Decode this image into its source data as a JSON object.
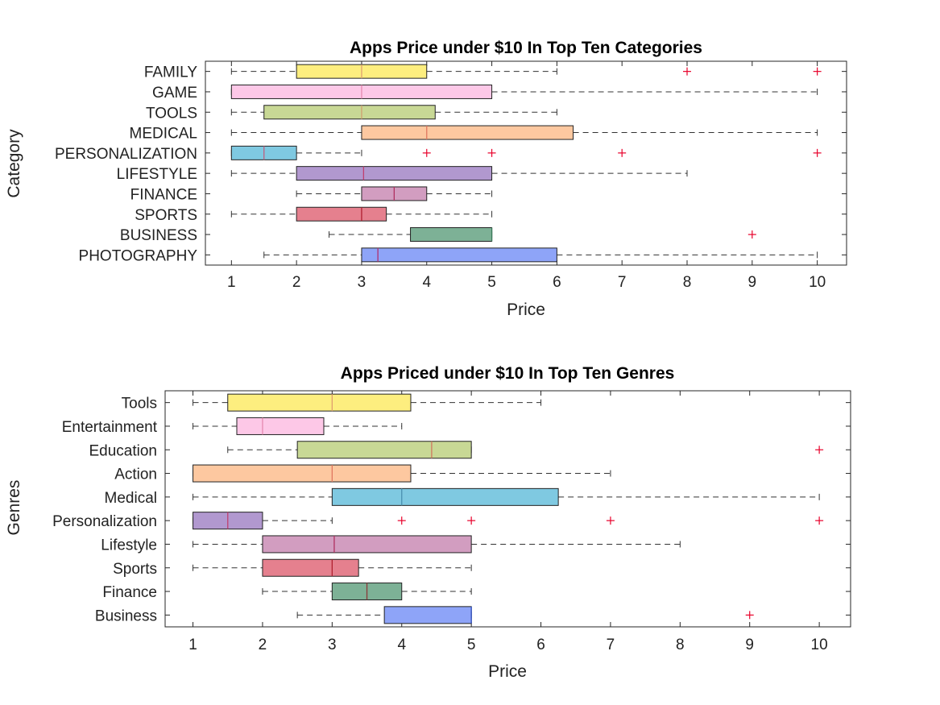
{
  "chart_data": [
    {
      "type": "boxplot",
      "orientation": "horizontal",
      "title": "Apps Price under $10 In Top Ten Categories",
      "xlabel": "Price",
      "ylabel": "Category",
      "xlim": [
        0.6,
        10.45
      ],
      "xticks": [
        "1",
        "2",
        "3",
        "4",
        "5",
        "6",
        "7",
        "8",
        "9",
        "10"
      ],
      "series": [
        {
          "name": "FAMILY",
          "color": "#FDEE7F",
          "whisker_low": 1,
          "q1": 2,
          "median": 3,
          "q3": 4,
          "whisker_high": 6,
          "outliers": [
            8,
            10
          ],
          "median_color": "#E0A070"
        },
        {
          "name": "GAME",
          "color": "#FDC8E7",
          "whisker_low": 1,
          "q1": 1,
          "median": 3,
          "q3": 5,
          "whisker_high": 10,
          "outliers": [],
          "median_color": "#E68AB0"
        },
        {
          "name": "TOOLS",
          "color": "#C8D895",
          "whisker_low": 1,
          "q1": 1.5,
          "median": 3,
          "q3": 4.13,
          "whisker_high": 6,
          "outliers": [],
          "median_color": "#D0A070"
        },
        {
          "name": "MEDICAL",
          "color": "#FDC8A0",
          "whisker_low": 1,
          "q1": 3,
          "median": 4,
          "q3": 6.25,
          "whisker_high": 10,
          "outliers": [],
          "median_color": "#E07860"
        },
        {
          "name": "PERSONALIZATION",
          "color": "#7FC9E1",
          "whisker_low": 1,
          "q1": 1,
          "median": 1.5,
          "q3": 2,
          "whisker_high": 3,
          "outliers": [
            4,
            5,
            7,
            10
          ],
          "median_color": "#C06080"
        },
        {
          "name": "LIFESTYLE",
          "color": "#B198CF",
          "whisker_low": 1,
          "q1": 2,
          "median": 3.03,
          "q3": 5,
          "whisker_high": 8,
          "outliers": [],
          "median_color": "#C04070"
        },
        {
          "name": "FINANCE",
          "color": "#D29DC0",
          "whisker_low": 2,
          "q1": 3,
          "median": 3.5,
          "q3": 4,
          "whisker_high": 5,
          "outliers": [],
          "median_color": "#B03060"
        },
        {
          "name": "SPORTS",
          "color": "#E5808E",
          "whisker_low": 1,
          "q1": 2,
          "median": 3,
          "q3": 3.38,
          "whisker_high": 5,
          "outliers": [],
          "median_color": "#B02030"
        },
        {
          "name": "BUSINESS",
          "color": "#7DB196",
          "whisker_low": 2.5,
          "q1": 3.75,
          "median": 5,
          "q3": 5,
          "whisker_high": 5,
          "outliers": [
            9
          ],
          "median_color": "#3A7A5A"
        },
        {
          "name": "PHOTOGRAPHY",
          "color": "#8EA4F8",
          "whisker_low": 1.5,
          "q1": 3,
          "median": 3.25,
          "q3": 6,
          "whisker_high": 10,
          "outliers": [],
          "median_color": "#B03070"
        }
      ]
    },
    {
      "type": "boxplot",
      "orientation": "horizontal",
      "title": "Apps Priced under $10 In Top Ten Genres",
      "xlabel": "Price",
      "ylabel": "Genres",
      "xlim": [
        0.6,
        10.45
      ],
      "xticks": [
        "1",
        "2",
        "3",
        "4",
        "5",
        "6",
        "7",
        "8",
        "9",
        "10"
      ],
      "series": [
        {
          "name": "Tools",
          "color": "#FDEE7F",
          "whisker_low": 1,
          "q1": 1.5,
          "median": 3,
          "q3": 4.13,
          "whisker_high": 6,
          "outliers": [],
          "median_color": "#E0A070"
        },
        {
          "name": "Entertainment",
          "color": "#FDC8E7",
          "whisker_low": 1,
          "q1": 1.63,
          "median": 2,
          "q3": 2.88,
          "whisker_high": 4,
          "outliers": [],
          "median_color": "#E68AB0"
        },
        {
          "name": "Education",
          "color": "#C8D895",
          "whisker_low": 1.5,
          "q1": 2.5,
          "median": 4.43,
          "q3": 5,
          "whisker_high": 5,
          "outliers": [
            10
          ],
          "median_color": "#D07860"
        },
        {
          "name": "Action",
          "color": "#FDC8A0",
          "whisker_low": 1,
          "q1": 1,
          "median": 3,
          "q3": 4.13,
          "whisker_high": 7,
          "outliers": [],
          "median_color": "#E07860"
        },
        {
          "name": "Medical",
          "color": "#7FC9E1",
          "whisker_low": 1,
          "q1": 3,
          "median": 4,
          "q3": 6.25,
          "whisker_high": 10,
          "outliers": [],
          "median_color": "#4A8FB0"
        },
        {
          "name": "Personalization",
          "color": "#B198CF",
          "whisker_low": 1,
          "q1": 1,
          "median": 1.5,
          "q3": 2,
          "whisker_high": 3,
          "outliers": [
            4,
            5,
            7,
            10
          ],
          "median_color": "#C04070"
        },
        {
          "name": "Lifestyle",
          "color": "#D29DC0",
          "whisker_low": 1,
          "q1": 2,
          "median": 3.03,
          "q3": 5,
          "whisker_high": 8,
          "outliers": [],
          "median_color": "#B03060"
        },
        {
          "name": "Sports",
          "color": "#E5808E",
          "whisker_low": 1,
          "q1": 2,
          "median": 3,
          "q3": 3.38,
          "whisker_high": 5,
          "outliers": [],
          "median_color": "#B02030"
        },
        {
          "name": "Finance",
          "color": "#7DB196",
          "whisker_low": 2,
          "q1": 3,
          "median": 3.5,
          "q3": 4,
          "whisker_high": 5,
          "outliers": [],
          "median_color": "#8A3A3A"
        },
        {
          "name": "Business",
          "color": "#8EA4F8",
          "whisker_low": 2.5,
          "q1": 3.75,
          "median": 5,
          "q3": 5,
          "whisker_high": 5,
          "outliers": [
            9
          ],
          "median_color": "#3050C0"
        }
      ]
    }
  ]
}
